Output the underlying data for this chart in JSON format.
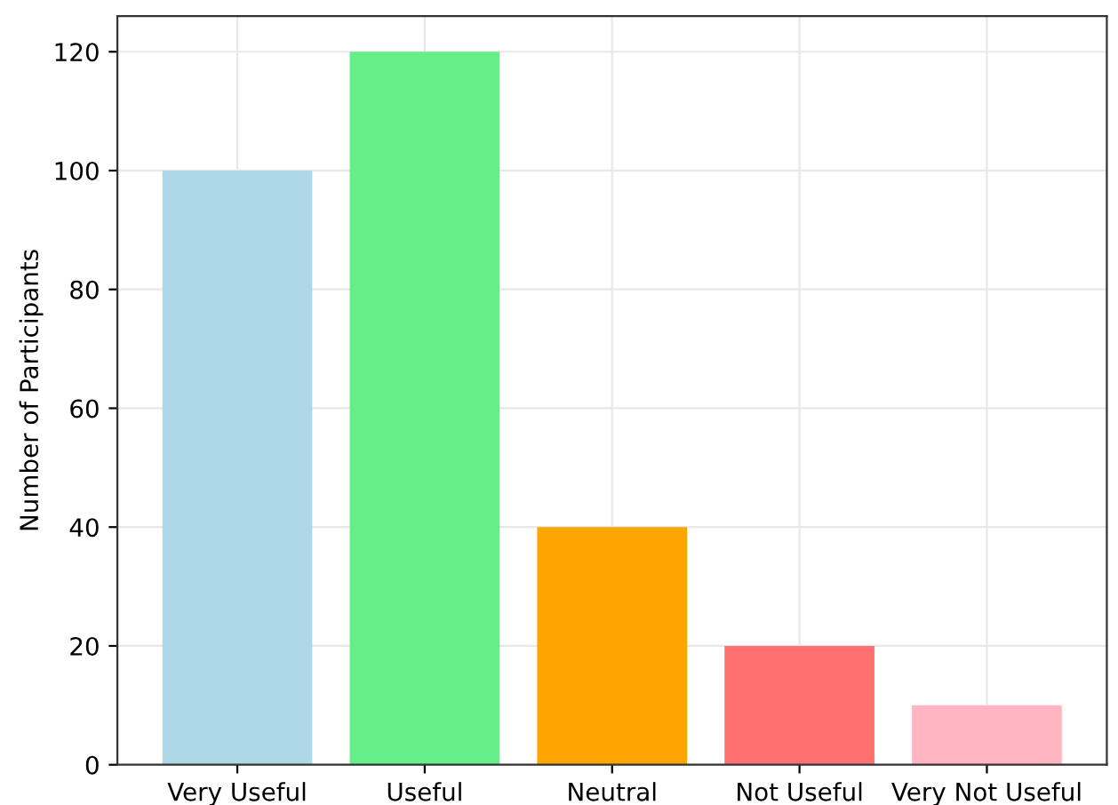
{
  "chart_data": {
    "type": "bar",
    "ylabel": "Number of Participants",
    "categories": [
      "Very Useful",
      "Useful",
      "Neutral",
      "Not Useful",
      "Very Not Useful"
    ],
    "values": [
      100,
      120,
      40,
      20,
      10
    ],
    "colors": [
      "#add8e6",
      "#66ee88",
      "#ffa500",
      "#ff7070",
      "#ffb6c1"
    ],
    "ylim": [
      0,
      126
    ],
    "yticks": [
      0,
      20,
      40,
      60,
      80,
      100,
      120
    ],
    "grid": true
  }
}
